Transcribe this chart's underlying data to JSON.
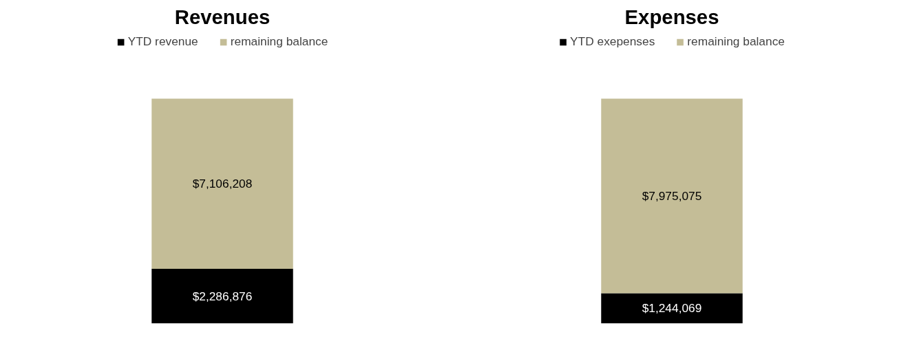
{
  "chart_data": [
    {
      "type": "bar",
      "title": "Revenues",
      "categories": [
        null
      ],
      "stacked": true,
      "legend": "top",
      "series": [
        {
          "name": "YTD revenue",
          "color": "#000000",
          "values": [
            2286876
          ],
          "value_labels": [
            "$2,286,876"
          ]
        },
        {
          "name": "remaining balance",
          "color": "#c4bd97",
          "values": [
            7106208
          ],
          "value_labels": [
            "$7,106,208"
          ]
        }
      ]
    },
    {
      "type": "bar",
      "title": "Expenses",
      "categories": [
        null
      ],
      "stacked": true,
      "legend": "top",
      "series": [
        {
          "name": "YTD exepenses",
          "color": "#000000",
          "values": [
            1244069
          ],
          "value_labels": [
            "$1,244,069"
          ]
        },
        {
          "name": "remaining balance",
          "color": "#c4bd97",
          "values": [
            7975075
          ],
          "value_labels": [
            "$7,975,075"
          ]
        }
      ]
    }
  ]
}
